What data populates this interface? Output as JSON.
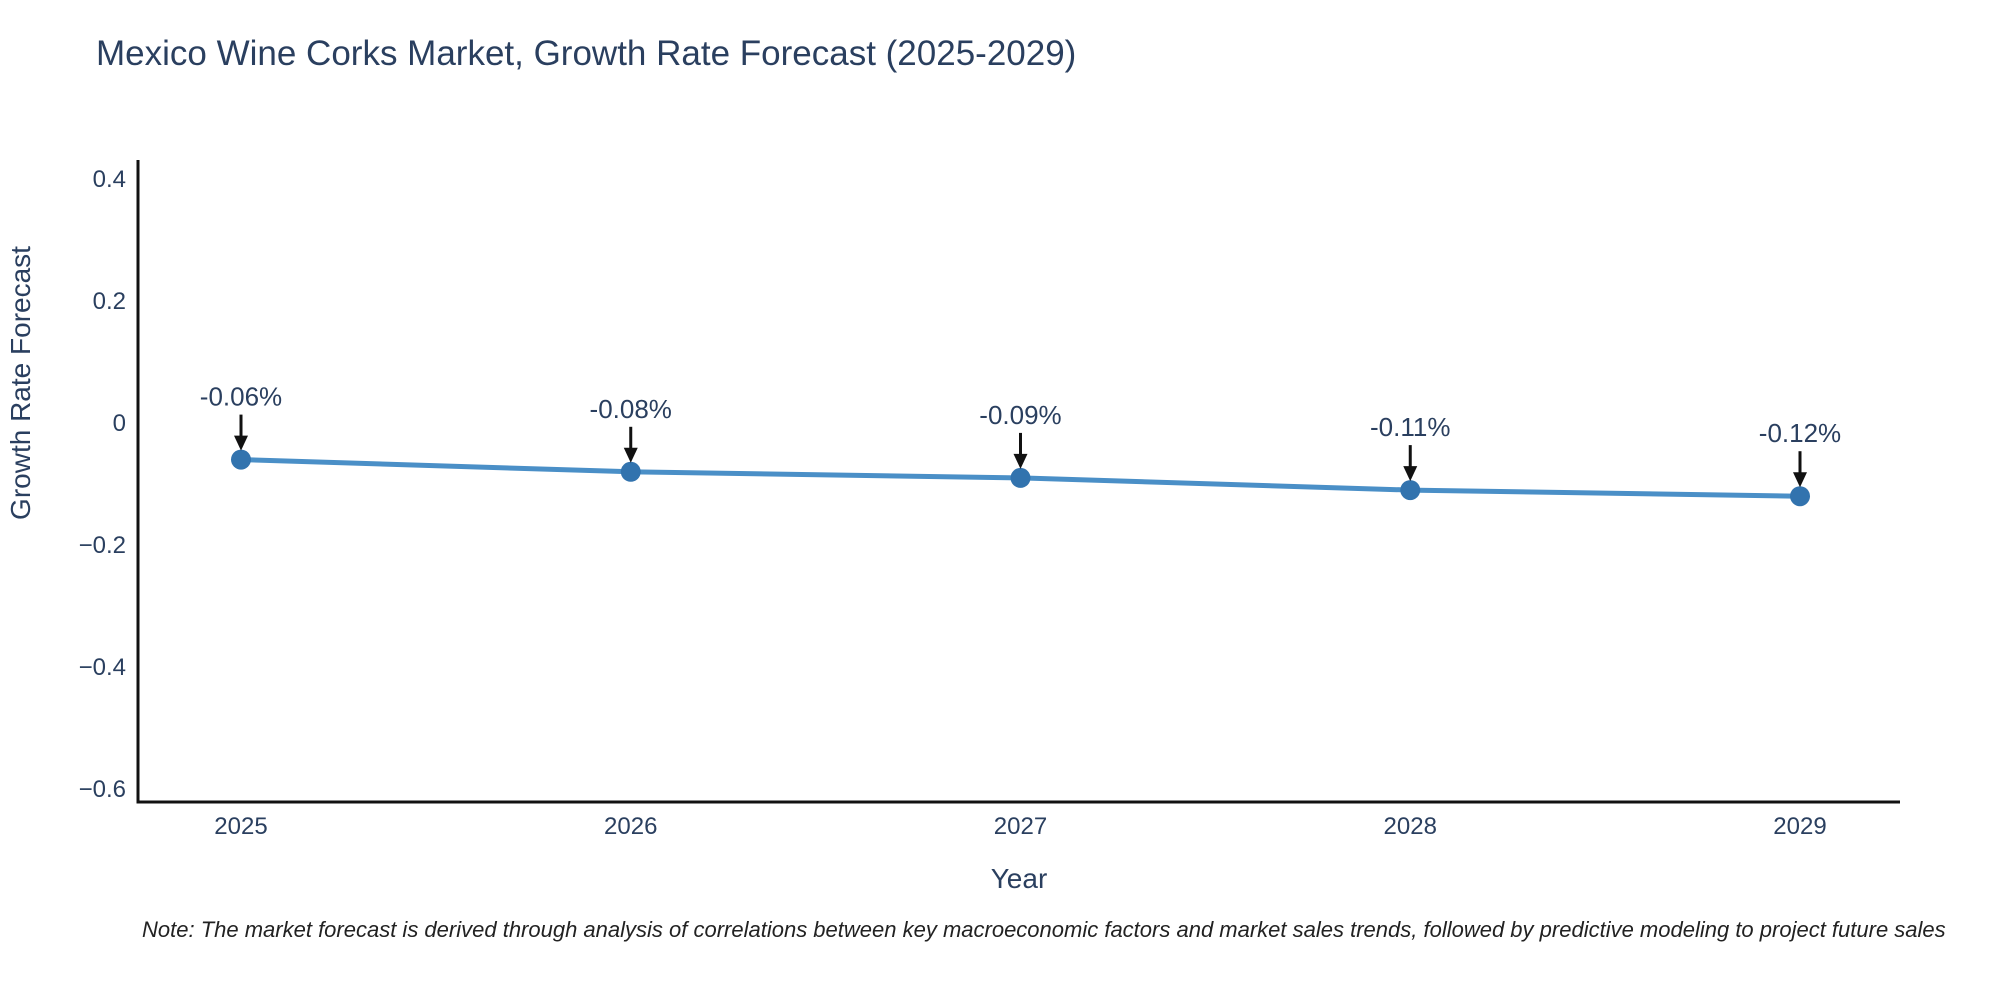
{
  "chart": {
    "title": "Mexico Wine Corks Market, Growth Rate Forecast (2025-2029)",
    "xaxis_title": "Year",
    "yaxis_title": "Growth Rate Forecast",
    "note": "Note: The market forecast is derived through analysis of correlations between key macroeconomic factors and market sales trends, followed by predictive modeling to project future sales"
  },
  "chart_data": {
    "type": "line",
    "x": [
      2025,
      2026,
      2027,
      2028,
      2029
    ],
    "values": [
      -0.06,
      -0.08,
      -0.09,
      -0.11,
      -0.12
    ],
    "point_labels": [
      "-0.06%",
      "-0.08%",
      "-0.09%",
      "-0.11%",
      "-0.12%"
    ],
    "series_name": "Growth Rate Forecast",
    "title": "Mexico Wine Corks Market, Growth Rate Forecast (2025-2029)",
    "xlabel": "Year",
    "ylabel": "Growth Rate Forecast",
    "ylim": [
      -0.65,
      0.45
    ],
    "yticks": [
      0.4,
      0.2,
      0,
      -0.2,
      -0.4,
      -0.6
    ],
    "ytick_labels": [
      "0.4",
      "0.2",
      "0",
      "−0.2",
      "−0.4",
      "−0.6"
    ],
    "xtick_labels": [
      "2025",
      "2026",
      "2027",
      "2028",
      "2029"
    ],
    "grid": false,
    "legend": "none",
    "annotations_arrows": true
  },
  "colors": {
    "line": "#4a8fc7",
    "marker": "#3273ae",
    "text": "#2a3f5f",
    "axis_line": "#111111",
    "arrow": "#111111",
    "note_text": "#222222",
    "background": "#ffffff"
  }
}
